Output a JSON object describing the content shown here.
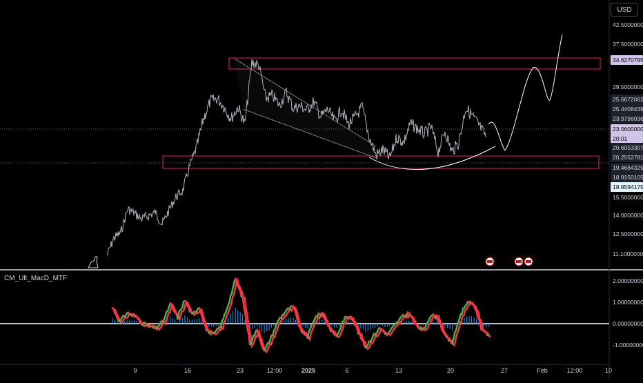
{
  "currency_button": "USD",
  "indicator_title": "CM_Ult_MacD_MTF",
  "countdown": "20:01",
  "colors": {
    "background": "#000000",
    "price_line": "#b2b5be",
    "zone_border": "#e91e63",
    "channel": "#9598a1",
    "projection": "#ffffff",
    "macd_up": "#4caf50",
    "macd_down": "#f23645",
    "macd_zero": "#ffffff",
    "histogram": "#2196f3"
  },
  "chart_data": [
    {
      "type": "line",
      "pane": "price",
      "y_axis_ticks": [
        "42.50000000",
        "37.50000000",
        "29.50000000",
        "15.50000000",
        "14.00000000",
        "12.50000000",
        "11.10000000"
      ],
      "x_axis_ticks": [
        "9",
        "16",
        "23",
        "12:00",
        "2025",
        "6",
        "13",
        "20",
        "27",
        "Feb",
        "12:00",
        "10"
      ],
      "price_labels": [
        {
          "value": "34.62707956",
          "style": "highlight"
        },
        {
          "value": "25.66720624",
          "style": "normal"
        },
        {
          "value": "25.44084390",
          "style": "normal"
        },
        {
          "value": "23.97960363",
          "style": "normal"
        },
        {
          "value": "23.06000000",
          "style": "highlight"
        },
        {
          "value": "20.60533073",
          "style": "normal"
        },
        {
          "value": "20.25527811",
          "style": "normal"
        },
        {
          "value": "19.46843291",
          "style": "normal"
        },
        {
          "value": "18.91501056",
          "style": "normal"
        },
        {
          "value": "18.85941751",
          "style": "light"
        }
      ],
      "annotations": [
        {
          "kind": "resistance-zone",
          "low": 33.5,
          "high": 34.63
        },
        {
          "kind": "support-zone",
          "low": 19.47,
          "high": 20.61
        },
        {
          "kind": "descending-channel"
        },
        {
          "kind": "rounded-bottom"
        },
        {
          "kind": "projection-path"
        }
      ],
      "series": [
        {
          "values": [
            11.0,
            12.2,
            12.6,
            14.4,
            14.0,
            13.6,
            13.8,
            14.1,
            13.2,
            14.3,
            15.6,
            17.6,
            19.9,
            21.3,
            24.3,
            26.9,
            27.4,
            25.8,
            24.3,
            25.8,
            23.6,
            34.2,
            33.7,
            27.4,
            27.9,
            26.1,
            28.5,
            25.6,
            26.0,
            25.3,
            26.8,
            24.5,
            25.4,
            24.0,
            25.4,
            23.6,
            24.5,
            25.8,
            22.3,
            20.6,
            21.1,
            20.3,
            22.3,
            21.8,
            23.7,
            23.1,
            22.6,
            23.3,
            20.9,
            22.9,
            20.9,
            21.8,
            25.7,
            24.6,
            23.4,
            22.3
          ]
        }
      ]
    },
    {
      "type": "line",
      "pane": "indicator",
      "y_axis_ticks": [
        "2.00000000",
        "1.00000000",
        "0.00000000",
        "-1.00000000"
      ],
      "series": [
        {
          "values": [
            0.75,
            0.1,
            0.5,
            0.4,
            0.05,
            -0.1,
            -0.2,
            0.1,
            0.9,
            0.3,
            1.1,
            0.4,
            0.8,
            -0.3,
            -0.5,
            -0.1,
            0.9,
            2.05,
            1.2,
            -0.9,
            -0.3,
            -1.3,
            -0.6,
            0.2,
            0.6,
            0.8,
            -0.3,
            -0.6,
            0.3,
            0.5,
            -0.2,
            -0.6,
            0.2,
            0.4,
            -0.4,
            -1.1,
            -0.6,
            -0.2,
            -0.5,
            -0.1,
            0.3,
            0.5,
            -0.1,
            -0.3,
            0.4,
            0.3,
            -0.6,
            -0.9,
            0.3,
            1.0,
            0.9,
            -0.2,
            -0.5
          ]
        }
      ]
    }
  ]
}
